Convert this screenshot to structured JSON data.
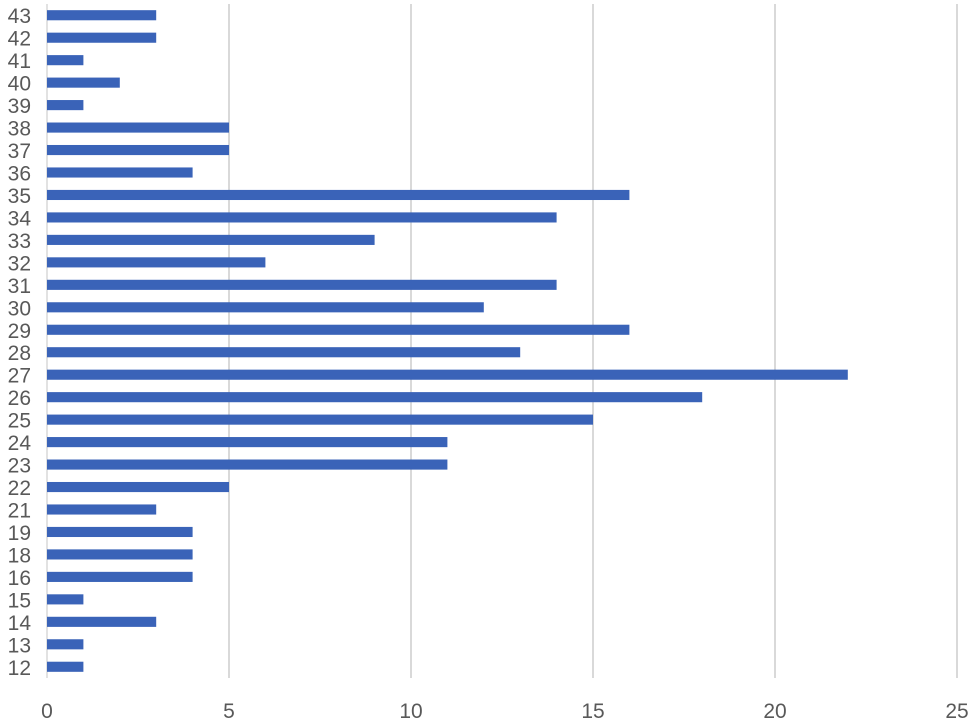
{
  "chart_data": {
    "type": "bar",
    "orientation": "horizontal",
    "title": "",
    "xlabel": "",
    "ylabel": "",
    "categories": [
      "12",
      "13",
      "14",
      "15",
      "16",
      "18",
      "19",
      "21",
      "22",
      "23",
      "24",
      "25",
      "26",
      "27",
      "28",
      "29",
      "30",
      "31",
      "32",
      "33",
      "34",
      "35",
      "36",
      "37",
      "38",
      "39",
      "40",
      "41",
      "42",
      "43"
    ],
    "values": [
      1,
      1,
      3,
      1,
      4,
      4,
      4,
      3,
      5,
      11,
      11,
      15,
      18,
      22,
      13,
      16,
      12,
      14,
      6,
      9,
      14,
      16,
      4,
      5,
      5,
      1,
      2,
      1,
      3,
      3
    ],
    "xlim": [
      0,
      25
    ],
    "xticks": [
      0,
      5,
      10,
      15,
      20,
      25
    ],
    "grid": "vertical",
    "legend": "none",
    "bar_color": "#3a63b8",
    "grid_color": "#d9d9d9",
    "tick_color": "#595959"
  }
}
